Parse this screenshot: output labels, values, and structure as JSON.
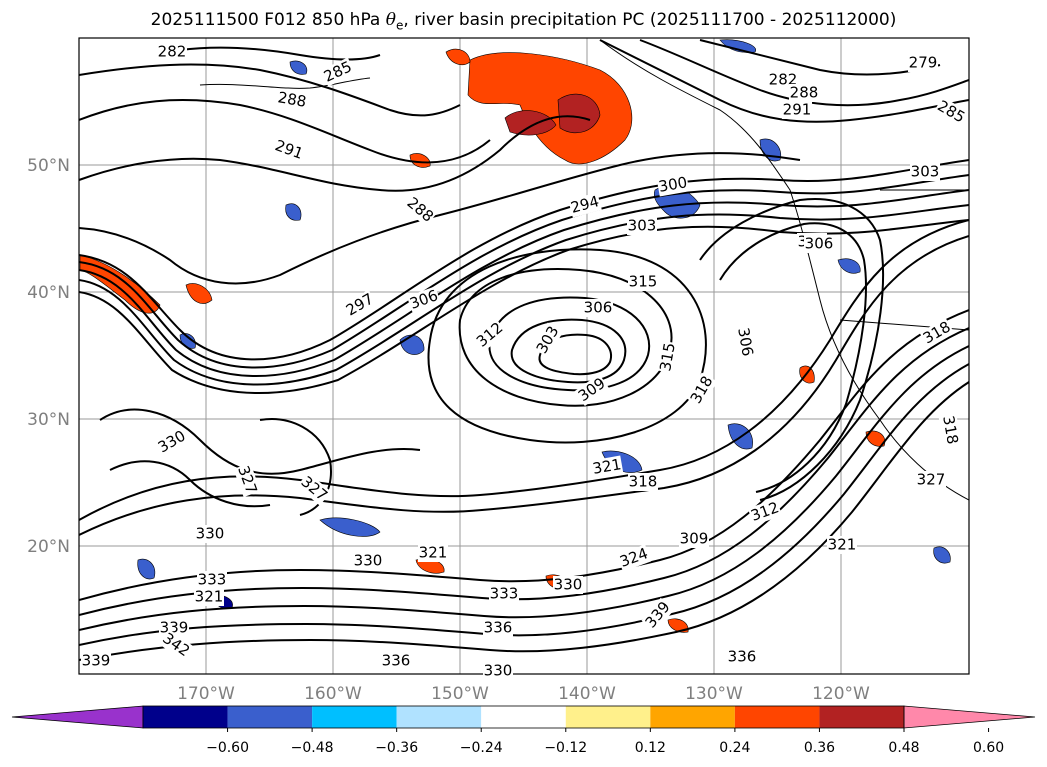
{
  "title": {
    "prefix": "2025111500 F012 850 hPa ",
    "theta": "θ",
    "theta_sub": "e",
    "suffix": ", river basin precipitation PC (2025111700 - 2025112000)"
  },
  "map": {
    "lat_labels": [
      "50°N",
      "40°N",
      "30°N",
      "20°N"
    ],
    "lon_labels": [
      "170°W",
      "160°W",
      "150°W",
      "140°W",
      "130°W",
      "120°W"
    ],
    "contour_labels": [
      "282",
      "285",
      "288",
      "291",
      "288",
      "294",
      "300",
      "303",
      "306",
      "297",
      "306",
      "315",
      "312",
      "303",
      "306",
      "309",
      "315",
      "318",
      "306",
      "318",
      "321",
      "318",
      "327",
      "330",
      "321",
      "330",
      "336",
      "339",
      "342",
      "333",
      "330",
      "321",
      "324",
      "309",
      "312",
      "321",
      "336",
      "339",
      "336",
      "330",
      "327",
      "279",
      "285",
      "282",
      "288",
      "291",
      "303",
      "306",
      "318",
      "327",
      "330",
      "333",
      "339"
    ]
  },
  "colorbar": {
    "colors": [
      "#9932cc",
      "#00008b",
      "#3a5fcd",
      "#00bfff",
      "#b0e2ff",
      "#ffffff",
      "#fff08b",
      "#ffa500",
      "#ff4500",
      "#b22222",
      "#ff88aa"
    ],
    "tick_labels": [
      "−0.60",
      "−0.48",
      "−0.36",
      "−0.24",
      "−0.12",
      "0.12",
      "0.24",
      "0.36",
      "0.48",
      "0.60"
    ]
  }
}
